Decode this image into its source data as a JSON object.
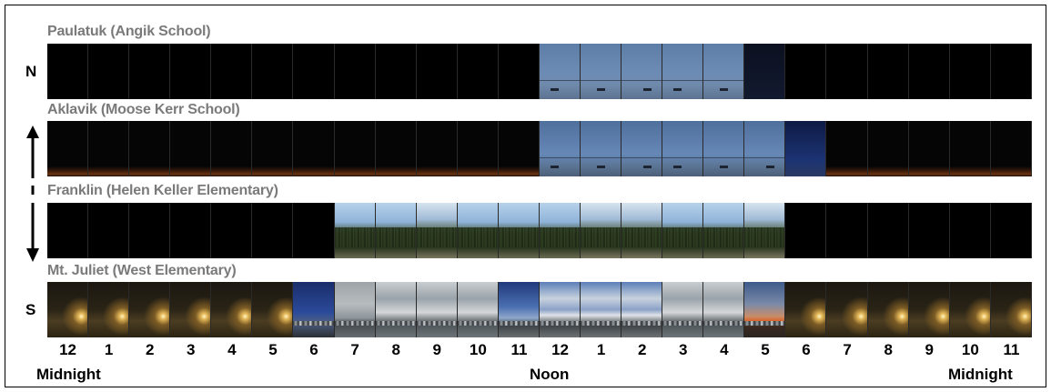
{
  "rows": [
    {
      "title": "Paulatuk (Angik School)",
      "cells": [
        "night",
        "night",
        "night",
        "night",
        "night",
        "night",
        "night",
        "night",
        "night",
        "night",
        "night",
        "night",
        "blue",
        "blue",
        "blue",
        "blue",
        "blue",
        "dusk",
        "night",
        "night",
        "night",
        "night",
        "night",
        "night"
      ]
    },
    {
      "title": "Aklavik (Moose Kerr School)",
      "cells": [
        "glow",
        "glow",
        "glow",
        "glow",
        "glow",
        "glow",
        "glow",
        "glow",
        "glow",
        "glow",
        "glow",
        "glow",
        "blue2",
        "blue2",
        "blue2",
        "blue2",
        "blue2",
        "blue2",
        "darkblue",
        "glow",
        "glow",
        "glow",
        "glow",
        "glow"
      ]
    },
    {
      "title": "Franklin (Helen Keller Elementary)",
      "cells": [
        "night",
        "night",
        "night",
        "night",
        "night",
        "night",
        "night",
        "forest",
        "forest",
        "forest2",
        "forest",
        "forest",
        "forest",
        "forest2",
        "forest2",
        "forest",
        "forest",
        "forest2",
        "night",
        "night",
        "night",
        "night",
        "night",
        "night"
      ]
    },
    {
      "title": "Mt. Juliet (West Elementary)",
      "cells": [
        "lamp",
        "lamp",
        "lamp",
        "lamp",
        "lamp",
        "lamp",
        "dawn",
        "overcast",
        "cloudy",
        "cloudy",
        "cloudy",
        "bluesky",
        "puffy",
        "puffy",
        "puffy",
        "cloudy",
        "cloudy",
        "sunset",
        "lamp",
        "lamp",
        "lamp",
        "lamp",
        "lamp",
        "lamp"
      ]
    }
  ],
  "compass": {
    "north": "N",
    "south": "S"
  },
  "hours": [
    "12",
    "1",
    "2",
    "3",
    "4",
    "5",
    "6",
    "7",
    "8",
    "9",
    "10",
    "11",
    "12",
    "1",
    "2",
    "3",
    "4",
    "5",
    "6",
    "7",
    "8",
    "9",
    "10",
    "11"
  ],
  "captions": {
    "left": "Midnight",
    "center": "Noon",
    "right": "Midnight"
  }
}
